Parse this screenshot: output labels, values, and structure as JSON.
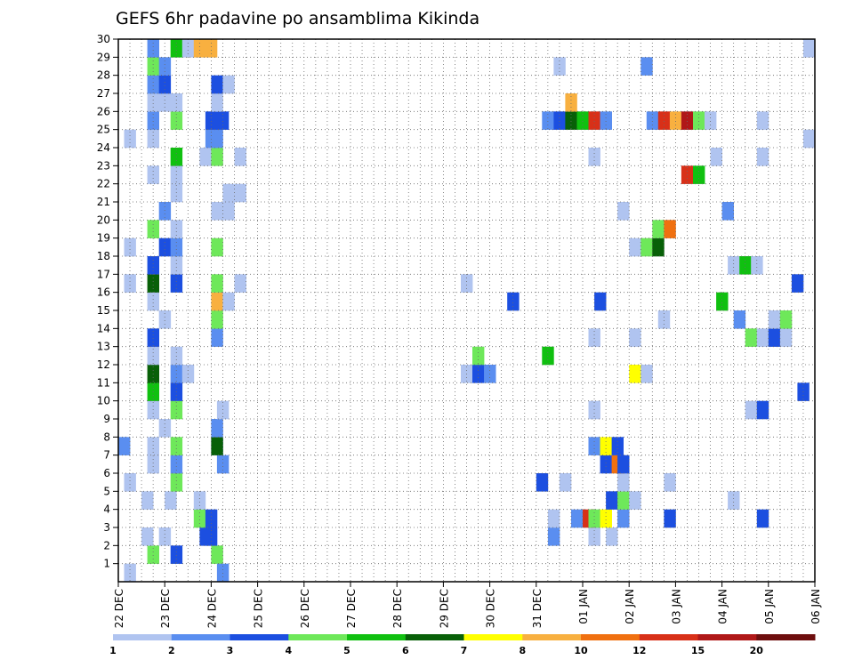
{
  "title": "GEFS 6hr padavine po ansamblima Kikinda",
  "chart_data": {
    "type": "heatmap",
    "title": "GEFS 6hr padavine po ansamblima Kikinda",
    "xlabel": "",
    "ylabel": "",
    "x_ticks": [
      "22 DEC",
      "23 DEC",
      "24 DEC",
      "25 DEC",
      "26 DEC",
      "27 DEC",
      "28 DEC",
      "29 DEC",
      "30 DEC",
      "31 DEC",
      "01 JAN",
      "02 JAN",
      "03 JAN",
      "04 JAN",
      "05 JAN",
      "06 JAN"
    ],
    "y_ticks": [
      "1",
      "2",
      "3",
      "4",
      "5",
      "6",
      "7",
      "8",
      "9",
      "10",
      "11",
      "12",
      "13",
      "14",
      "15",
      "16",
      "17",
      "18",
      "19",
      "20",
      "21",
      "22",
      "23",
      "24",
      "25",
      "26",
      "27",
      "28",
      "29",
      "30"
    ],
    "x_range_steps": [
      0,
      60
    ],
    "y_range": [
      0,
      30
    ],
    "grid": true,
    "colorbar": {
      "labels": [
        "1",
        "2",
        "3",
        "4",
        "5",
        "6",
        "7",
        "8",
        "10",
        "12",
        "15",
        "20"
      ],
      "colors": [
        "#b0c4f0",
        "#5a8ef0",
        "#1c4fe0",
        "#6ee85a",
        "#10c010",
        "#086008",
        "#ffff00",
        "#f8b040",
        "#f07010",
        "#d83018",
        "#b01818",
        "#6e0e0e"
      ]
    },
    "cells": [
      {
        "t": 0.5,
        "m": 0,
        "c": 0
      },
      {
        "t": 2.5,
        "m": 1,
        "c": 3
      },
      {
        "t": 4.5,
        "m": 1,
        "c": 2
      },
      {
        "t": 8,
        "m": 1,
        "c": 3
      },
      {
        "t": 8.5,
        "m": 0,
        "c": 1
      },
      {
        "t": 2,
        "m": 2,
        "c": 0
      },
      {
        "t": 3.5,
        "m": 2,
        "c": 0
      },
      {
        "t": 7,
        "m": 2,
        "c": 2
      },
      {
        "t": 7.5,
        "m": 2,
        "c": 2
      },
      {
        "t": 37,
        "m": 2,
        "c": 1
      },
      {
        "t": 40.5,
        "m": 2,
        "c": 0
      },
      {
        "t": 42,
        "m": 2,
        "c": 0
      },
      {
        "t": 6.5,
        "m": 3,
        "c": 3
      },
      {
        "t": 7.5,
        "m": 3,
        "c": 2
      },
      {
        "t": 37,
        "m": 3,
        "c": 0
      },
      {
        "t": 39,
        "m": 3,
        "c": 1
      },
      {
        "t": 40,
        "m": 3,
        "c": 9
      },
      {
        "t": 40.5,
        "m": 3,
        "c": 3
      },
      {
        "t": 41.5,
        "m": 3,
        "c": 6
      },
      {
        "t": 43,
        "m": 3,
        "c": 1
      },
      {
        "t": 47,
        "m": 3,
        "c": 2
      },
      {
        "t": 55,
        "m": 3,
        "c": 2
      },
      {
        "t": 2,
        "m": 4,
        "c": 0
      },
      {
        "t": 4,
        "m": 4,
        "c": 0
      },
      {
        "t": 6.5,
        "m": 4,
        "c": 0
      },
      {
        "t": 42,
        "m": 4,
        "c": 2
      },
      {
        "t": 43,
        "m": 4,
        "c": 3
      },
      {
        "t": 44,
        "m": 4,
        "c": 0
      },
      {
        "t": 52.5,
        "m": 4,
        "c": 0
      },
      {
        "t": 0.5,
        "m": 5,
        "c": 0
      },
      {
        "t": 4.5,
        "m": 5,
        "c": 3
      },
      {
        "t": 36,
        "m": 5,
        "c": 2
      },
      {
        "t": 38,
        "m": 5,
        "c": 0
      },
      {
        "t": 43,
        "m": 5,
        "c": 0
      },
      {
        "t": 47,
        "m": 5,
        "c": 0
      },
      {
        "t": 2.5,
        "m": 6,
        "c": 0
      },
      {
        "t": 4.5,
        "m": 6,
        "c": 1
      },
      {
        "t": 8.5,
        "m": 6,
        "c": 1
      },
      {
        "t": 41.5,
        "m": 6,
        "c": 2
      },
      {
        "t": 42.5,
        "m": 6,
        "c": 8
      },
      {
        "t": 43,
        "m": 6,
        "c": 2
      },
      {
        "t": 0,
        "m": 7,
        "c": 1
      },
      {
        "t": 2.5,
        "m": 7,
        "c": 0
      },
      {
        "t": 4.5,
        "m": 7,
        "c": 3
      },
      {
        "t": 8,
        "m": 7,
        "c": 1
      },
      {
        "t": 8,
        "m": 7,
        "c": 5
      },
      {
        "t": 40.5,
        "m": 7,
        "c": 1
      },
      {
        "t": 41.5,
        "m": 7,
        "c": 6
      },
      {
        "t": 42.5,
        "m": 7,
        "c": 2
      },
      {
        "t": 3.5,
        "m": 8,
        "c": 0
      },
      {
        "t": 8,
        "m": 8,
        "c": 1
      },
      {
        "t": 2.5,
        "m": 9,
        "c": 0
      },
      {
        "t": 4.5,
        "m": 9,
        "c": 3
      },
      {
        "t": 8.5,
        "m": 9,
        "c": 0
      },
      {
        "t": 40.5,
        "m": 9,
        "c": 0
      },
      {
        "t": 54,
        "m": 9,
        "c": 0
      },
      {
        "t": 55,
        "m": 9,
        "c": 2
      },
      {
        "t": 2.5,
        "m": 10,
        "c": 4
      },
      {
        "t": 4.5,
        "m": 10,
        "c": 2
      },
      {
        "t": 58.5,
        "m": 10,
        "c": 2
      },
      {
        "t": 2.5,
        "m": 11,
        "c": 5
      },
      {
        "t": 4.5,
        "m": 11,
        "c": 1
      },
      {
        "t": 5.5,
        "m": 11,
        "c": 0
      },
      {
        "t": 29.5,
        "m": 11,
        "c": 0
      },
      {
        "t": 30.5,
        "m": 11,
        "c": 2
      },
      {
        "t": 31.5,
        "m": 11,
        "c": 1
      },
      {
        "t": 44,
        "m": 11,
        "c": 6
      },
      {
        "t": 45,
        "m": 11,
        "c": 0
      },
      {
        "t": 2.5,
        "m": 12,
        "c": 0
      },
      {
        "t": 4.5,
        "m": 12,
        "c": 0
      },
      {
        "t": 30.5,
        "m": 12,
        "c": 3
      },
      {
        "t": 36.5,
        "m": 12,
        "c": 4
      },
      {
        "t": 2.5,
        "m": 13,
        "c": 2
      },
      {
        "t": 8,
        "m": 13,
        "c": 1
      },
      {
        "t": 40.5,
        "m": 13,
        "c": 0
      },
      {
        "t": 44,
        "m": 13,
        "c": 0
      },
      {
        "t": 54,
        "m": 13,
        "c": 3
      },
      {
        "t": 55,
        "m": 13,
        "c": 0
      },
      {
        "t": 56,
        "m": 13,
        "c": 2
      },
      {
        "t": 57,
        "m": 13,
        "c": 0
      },
      {
        "t": 3.5,
        "m": 14,
        "c": 0
      },
      {
        "t": 8,
        "m": 14,
        "c": 3
      },
      {
        "t": 46.5,
        "m": 14,
        "c": 0
      },
      {
        "t": 53,
        "m": 14,
        "c": 1
      },
      {
        "t": 56,
        "m": 14,
        "c": 0
      },
      {
        "t": 57,
        "m": 14,
        "c": 3
      },
      {
        "t": 2.5,
        "m": 15,
        "c": 0
      },
      {
        "t": 8,
        "m": 15,
        "c": 7
      },
      {
        "t": 9,
        "m": 15,
        "c": 0
      },
      {
        "t": 33.5,
        "m": 15,
        "c": 2
      },
      {
        "t": 41,
        "m": 15,
        "c": 2
      },
      {
        "t": 51.5,
        "m": 15,
        "c": 4
      },
      {
        "t": 0.5,
        "m": 16,
        "c": 0
      },
      {
        "t": 2.5,
        "m": 16,
        "c": 5
      },
      {
        "t": 4.5,
        "m": 16,
        "c": 2
      },
      {
        "t": 8,
        "m": 16,
        "c": 3
      },
      {
        "t": 10,
        "m": 16,
        "c": 0
      },
      {
        "t": 29.5,
        "m": 16,
        "c": 0
      },
      {
        "t": 58,
        "m": 16,
        "c": 2
      },
      {
        "t": 2.5,
        "m": 17,
        "c": 2
      },
      {
        "t": 4.5,
        "m": 17,
        "c": 0
      },
      {
        "t": 52.5,
        "m": 17,
        "c": 0
      },
      {
        "t": 53.5,
        "m": 17,
        "c": 4
      },
      {
        "t": 54.5,
        "m": 17,
        "c": 0
      },
      {
        "t": 0.5,
        "m": 18,
        "c": 0
      },
      {
        "t": 3.5,
        "m": 18,
        "c": 2
      },
      {
        "t": 4.5,
        "m": 18,
        "c": 1
      },
      {
        "t": 8,
        "m": 18,
        "c": 3
      },
      {
        "t": 44,
        "m": 18,
        "c": 0
      },
      {
        "t": 45,
        "m": 18,
        "c": 3
      },
      {
        "t": 46,
        "m": 18,
        "c": 5
      },
      {
        "t": 2.5,
        "m": 19,
        "c": 3
      },
      {
        "t": 4.5,
        "m": 19,
        "c": 0
      },
      {
        "t": 46,
        "m": 19,
        "c": 3
      },
      {
        "t": 47,
        "m": 19,
        "c": 8
      },
      {
        "t": 3.5,
        "m": 20,
        "c": 1
      },
      {
        "t": 8,
        "m": 20,
        "c": 0
      },
      {
        "t": 9,
        "m": 20,
        "c": 0
      },
      {
        "t": 43,
        "m": 20,
        "c": 0
      },
      {
        "t": 52,
        "m": 20,
        "c": 1
      },
      {
        "t": 4.5,
        "m": 21,
        "c": 0
      },
      {
        "t": 9,
        "m": 21,
        "c": 0
      },
      {
        "t": 10,
        "m": 21,
        "c": 0
      },
      {
        "t": 2.5,
        "m": 22,
        "c": 0
      },
      {
        "t": 4.5,
        "m": 22,
        "c": 0
      },
      {
        "t": 48.5,
        "m": 22,
        "c": 9
      },
      {
        "t": 49.5,
        "m": 22,
        "c": 4
      },
      {
        "t": 4.5,
        "m": 23,
        "c": 4
      },
      {
        "t": 7,
        "m": 23,
        "c": 0
      },
      {
        "t": 8,
        "m": 23,
        "c": 3
      },
      {
        "t": 10,
        "m": 23,
        "c": 0
      },
      {
        "t": 40.5,
        "m": 23,
        "c": 0
      },
      {
        "t": 51,
        "m": 23,
        "c": 0
      },
      {
        "t": 55,
        "m": 23,
        "c": 0
      },
      {
        "t": 0.5,
        "m": 24,
        "c": 0
      },
      {
        "t": 2.5,
        "m": 24,
        "c": 0
      },
      {
        "t": 7.5,
        "m": 24,
        "c": 1
      },
      {
        "t": 8,
        "m": 24,
        "c": 1
      },
      {
        "t": 59,
        "m": 24,
        "c": 0
      },
      {
        "t": 2.5,
        "m": 25,
        "c": 1
      },
      {
        "t": 4.5,
        "m": 25,
        "c": 3
      },
      {
        "t": 7.5,
        "m": 25,
        "c": 2
      },
      {
        "t": 8.5,
        "m": 25,
        "c": 2
      },
      {
        "t": 36.5,
        "m": 25,
        "c": 1
      },
      {
        "t": 37.5,
        "m": 25,
        "c": 2
      },
      {
        "t": 38.5,
        "m": 25,
        "c": 5
      },
      {
        "t": 39.5,
        "m": 25,
        "c": 4
      },
      {
        "t": 40.5,
        "m": 25,
        "c": 9
      },
      {
        "t": 41.5,
        "m": 25,
        "c": 1
      },
      {
        "t": 45.5,
        "m": 25,
        "c": 1
      },
      {
        "t": 46.5,
        "m": 25,
        "c": 9
      },
      {
        "t": 47.5,
        "m": 25,
        "c": 7
      },
      {
        "t": 48.5,
        "m": 25,
        "c": 10
      },
      {
        "t": 49.5,
        "m": 25,
        "c": 3
      },
      {
        "t": 50.5,
        "m": 25,
        "c": 0
      },
      {
        "t": 55,
        "m": 25,
        "c": 0
      },
      {
        "t": 2.5,
        "m": 26,
        "c": 0
      },
      {
        "t": 3.5,
        "m": 26,
        "c": 0
      },
      {
        "t": 4.5,
        "m": 26,
        "c": 0
      },
      {
        "t": 8,
        "m": 26,
        "c": 0
      },
      {
        "t": 38.5,
        "m": 26,
        "c": 7
      },
      {
        "t": 2.5,
        "m": 27,
        "c": 1
      },
      {
        "t": 3.5,
        "m": 27,
        "c": 2
      },
      {
        "t": 8,
        "m": 27,
        "c": 2
      },
      {
        "t": 9,
        "m": 27,
        "c": 0
      },
      {
        "t": 2.5,
        "m": 28,
        "c": 3
      },
      {
        "t": 3.5,
        "m": 28,
        "c": 1
      },
      {
        "t": 37.5,
        "m": 28,
        "c": 0
      },
      {
        "t": 45,
        "m": 28,
        "c": 1
      },
      {
        "t": 2.5,
        "m": 29,
        "c": 1
      },
      {
        "t": 4.5,
        "m": 29,
        "c": 4
      },
      {
        "t": 5.5,
        "m": 29,
        "c": 0
      },
      {
        "t": 6.5,
        "m": 29,
        "c": 7
      },
      {
        "t": 7.5,
        "m": 29,
        "c": 7
      },
      {
        "t": 59,
        "m": 29,
        "c": 0
      }
    ]
  }
}
